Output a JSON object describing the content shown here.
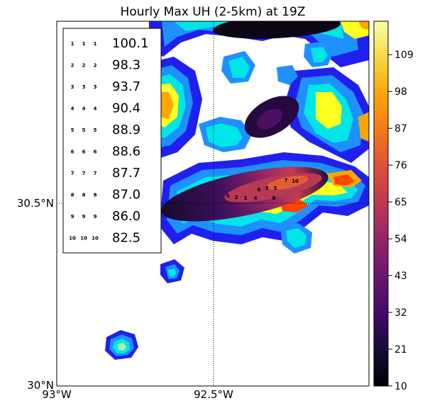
{
  "chart_data": {
    "type": "heatmap",
    "title": "Hourly Max UH (2-5km) at 19Z",
    "x_ticks": [
      "93°W",
      "92.5°W"
    ],
    "y_ticks": [
      "30°N",
      "30.5°N"
    ],
    "colorbar": {
      "ticks": [
        10,
        21,
        32,
        43,
        54,
        65,
        76,
        87,
        98,
        109
      ],
      "range": [
        10,
        119
      ],
      "colormap": "inferno"
    },
    "contour_colors": [
      "#2020ee",
      "#1e90ff",
      "#00e5e5",
      "#b4f0a0",
      "#ffff20",
      "#ffa500",
      "#ff4500"
    ],
    "legend": {
      "placement": "upper-left",
      "entries": [
        {
          "rank": "1",
          "value": "100.1"
        },
        {
          "rank": "2",
          "value": "98.3"
        },
        {
          "rank": "3",
          "value": "93.7"
        },
        {
          "rank": "4",
          "value": "90.4"
        },
        {
          "rank": "5",
          "value": "88.9"
        },
        {
          "rank": "6",
          "value": "88.6"
        },
        {
          "rank": "7",
          "value": "87.7"
        },
        {
          "rank": "8",
          "value": "87.0"
        },
        {
          "rank": "9",
          "value": "86.0"
        },
        {
          "rank": "10",
          "value": "82.5"
        }
      ]
    },
    "rank_markers": [
      "9",
      "2",
      "1",
      "4",
      "6",
      "3",
      "5",
      "7",
      "10",
      "8"
    ]
  }
}
